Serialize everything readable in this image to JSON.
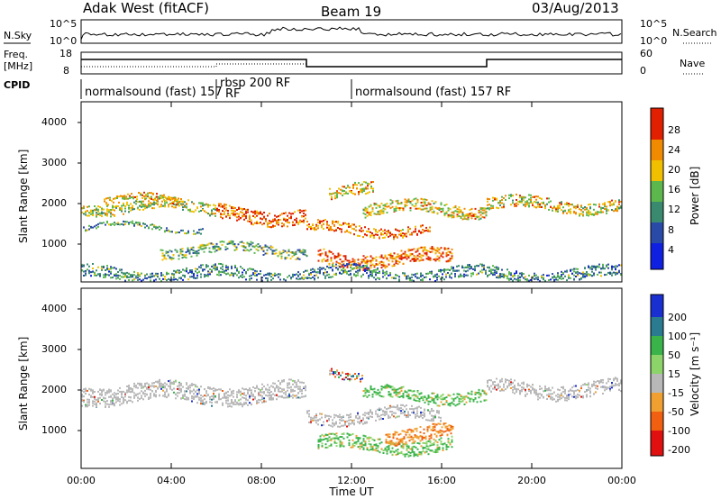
{
  "header": {
    "station": "Adak West (fitACF)",
    "beam": "Beam 19",
    "date": "03/Aug/2013"
  },
  "noise_panel": {
    "left_label": "N.Sky",
    "right_label": "N.Search",
    "left_ticks": [
      "10^5",
      "10^0"
    ],
    "right_ticks": [
      "10^5",
      "10^0"
    ]
  },
  "freq_panel": {
    "left_label_line1": "Freq.",
    "left_label_line2": "[MHz]",
    "left_ticks": [
      "18",
      "8"
    ],
    "right_label": "Nave",
    "right_ticks": [
      "60",
      "0"
    ],
    "cpid_label": "CPID"
  },
  "cpid_segments": [
    {
      "label": "normalsound (fast) 157",
      "start_hr": 0.0,
      "end_hr": 6.0
    },
    {
      "label": "rbsp 200 RF",
      "start_hr": 6.0,
      "end_hr": 10.0
    },
    {
      "label": "normalsound (fast) 157 RF",
      "start_hr": 12.0,
      "end_hr": 24.0
    }
  ],
  "cpid_overlap_label": "RF",
  "time_axis": {
    "label": "Time UT",
    "ticks": [
      "00:00",
      "04:00",
      "08:00",
      "12:00",
      "16:00",
      "20:00",
      "00:00"
    ]
  },
  "chart_data": [
    {
      "type": "heatmap",
      "panel": "power",
      "ylabel": "Slant Range [km]",
      "yticks": [
        "1000",
        "2000",
        "3000",
        "4000"
      ],
      "ylim": [
        200,
        4600
      ],
      "xlim_hours": [
        0,
        24
      ],
      "colorbar_label": "Power [dB]",
      "colorbar_ticks": [
        "4",
        "8",
        "12",
        "16",
        "20",
        "24",
        "28"
      ],
      "colorbar_colors": [
        "#1020e0",
        "#2a4aa8",
        "#3a8a70",
        "#5cb84c",
        "#f0c000",
        "#f08a00",
        "#e02000"
      ],
      "bands": [
        {
          "start_hr": 0.0,
          "end_hr": 6.0,
          "center_km": 2050,
          "width_km": 280,
          "strength": 0.45
        },
        {
          "start_hr": 1.0,
          "end_hr": 4.5,
          "center_km": 2200,
          "width_km": 180,
          "strength": 0.65
        },
        {
          "start_hr": 0.0,
          "end_hr": 5.5,
          "center_km": 1550,
          "width_km": 120,
          "strength": 0.2
        },
        {
          "start_hr": 3.5,
          "end_hr": 10.0,
          "center_km": 1000,
          "width_km": 250,
          "strength": 0.3
        },
        {
          "start_hr": 6.0,
          "end_hr": 10.0,
          "center_km": 1850,
          "width_km": 350,
          "strength": 0.85
        },
        {
          "start_hr": 10.0,
          "end_hr": 15.5,
          "center_km": 1500,
          "width_km": 250,
          "strength": 0.8
        },
        {
          "start_hr": 10.5,
          "end_hr": 16.5,
          "center_km": 800,
          "width_km": 350,
          "strength": 0.85
        },
        {
          "start_hr": 12.5,
          "end_hr": 18.0,
          "center_km": 2000,
          "width_km": 300,
          "strength": 0.6
        },
        {
          "start_hr": 18.0,
          "end_hr": 24.0,
          "center_km": 2100,
          "width_km": 300,
          "strength": 0.55
        },
        {
          "start_hr": 11.0,
          "end_hr": 13.0,
          "center_km": 2400,
          "width_km": 300,
          "strength": 0.6
        },
        {
          "start_hr": 0.0,
          "end_hr": 24.0,
          "center_km": 400,
          "width_km": 300,
          "strength": 0.15
        }
      ]
    },
    {
      "type": "heatmap",
      "panel": "velocity",
      "ylabel": "Slant Range [km]",
      "yticks": [
        "1000",
        "2000",
        "3000",
        "4000"
      ],
      "ylim": [
        200,
        4600
      ],
      "xlim_hours": [
        0,
        24
      ],
      "colorbar_label": "Velocity [m s⁻¹]",
      "colorbar_ticks": [
        "200",
        "100",
        "50",
        "15",
        "-15",
        "-50",
        "-100",
        "-200"
      ],
      "colorbar_colors": [
        "#1a2fd0",
        "#2a7a90",
        "#39b34a",
        "#8cd46a",
        "#b8b8b8",
        "#f0a030",
        "#f06010",
        "#e01010"
      ],
      "bands": [
        {
          "start_hr": 0.0,
          "end_hr": 10.0,
          "center_km": 2050,
          "width_km": 450,
          "value": "ground"
        },
        {
          "start_hr": 10.0,
          "end_hr": 16.0,
          "center_km": 1500,
          "width_km": 300,
          "value": "ground"
        },
        {
          "start_hr": 12.5,
          "end_hr": 18.0,
          "center_km": 2000,
          "width_km": 300,
          "value": "positive"
        },
        {
          "start_hr": 18.0,
          "end_hr": 24.0,
          "center_km": 2150,
          "width_km": 350,
          "value": "ground"
        },
        {
          "start_hr": 10.5,
          "end_hr": 16.5,
          "center_km": 800,
          "width_km": 350,
          "value": "positive"
        },
        {
          "start_hr": 13.5,
          "end_hr": 16.5,
          "center_km": 1050,
          "width_km": 350,
          "value": "negative"
        },
        {
          "start_hr": 11.0,
          "end_hr": 12.5,
          "center_km": 2550,
          "width_km": 200,
          "value": "mixed"
        }
      ]
    }
  ]
}
